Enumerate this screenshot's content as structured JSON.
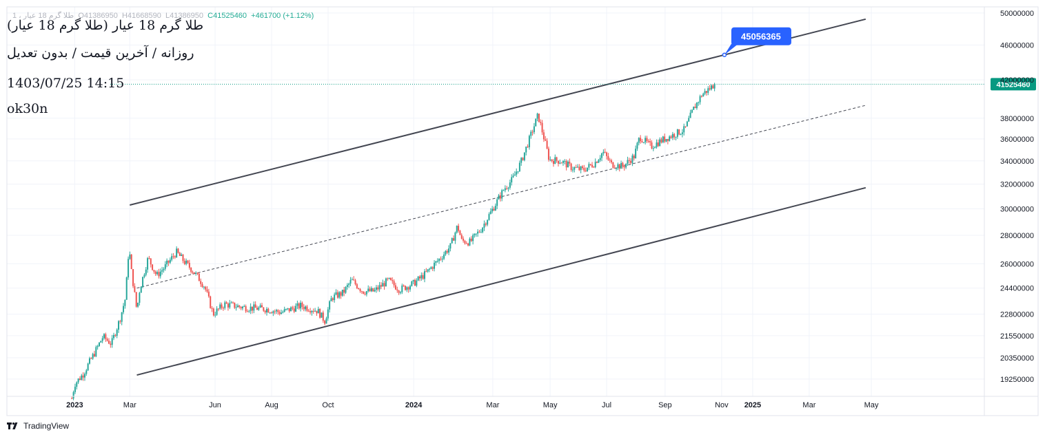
{
  "ohlc": {
    "symbol_faded": "1 ، طلا گرم 18 عیار",
    "open": "O41386950",
    "high": "H41668590",
    "low": "L41386950",
    "close": "C41525460",
    "change": "+461700 (+1.12%)"
  },
  "notes": {
    "title": "طلا گرم 18 عیار (طلا گرم 18 عیار)",
    "subtitle": "روزانه / آخرین قیمت / بدون تعدیل",
    "datetime": "1403/07/25 14:15",
    "author": "ok30n"
  },
  "brand": "TradingView",
  "colors": {
    "up": "#26a69a",
    "down": "#ef5350",
    "line": "#434651",
    "label_blue": "#2962ff",
    "last_price": "#089981",
    "grid": "#f0f3fa"
  },
  "chart_data": {
    "type": "candlestick",
    "title": "طلا گرم 18 عیار",
    "x_axis": {
      "ticks": [
        {
          "label": "2023",
          "t": 0.0,
          "bold": true
        },
        {
          "label": "Mar",
          "t": 1.95,
          "bold": false
        },
        {
          "label": "Jun",
          "t": 4.97,
          "bold": false
        },
        {
          "label": "Aug",
          "t": 6.97,
          "bold": false
        },
        {
          "label": "Oct",
          "t": 8.97,
          "bold": false
        },
        {
          "label": "2024",
          "t": 12.0,
          "bold": true
        },
        {
          "label": "Mar",
          "t": 14.8,
          "bold": false
        },
        {
          "label": "May",
          "t": 16.83,
          "bold": false
        },
        {
          "label": "Jul",
          "t": 18.83,
          "bold": false
        },
        {
          "label": "Sep",
          "t": 20.9,
          "bold": false
        },
        {
          "label": "Nov",
          "t": 22.9,
          "bold": false
        },
        {
          "label": "2025",
          "t": 24.0,
          "bold": true
        },
        {
          "label": "Mar",
          "t": 26.0,
          "bold": false
        },
        {
          "label": "May",
          "t": 28.2,
          "bold": false
        }
      ],
      "range_months": [
        -2.4,
        32.2
      ]
    },
    "y_axis": {
      "scale": "log",
      "range": [
        18400000,
        50800000
      ],
      "ticks": [
        "50000000",
        "46000000",
        "42000000",
        "38000000",
        "36000000",
        "34000000",
        "32000000",
        "30000000",
        "28000000",
        "26000000",
        "24400000",
        "22800000",
        "21550000",
        "20350000",
        "19250000"
      ]
    },
    "price_anchors": [
      {
        "t": -0.1,
        "p": 18300000
      },
      {
        "t": 0.0,
        "p": 19000000
      },
      {
        "t": 0.3,
        "p": 19500000
      },
      {
        "t": 0.7,
        "p": 20600000
      },
      {
        "t": 1.0,
        "p": 21500000
      },
      {
        "t": 1.3,
        "p": 21100000
      },
      {
        "t": 1.6,
        "p": 22500000
      },
      {
        "t": 1.8,
        "p": 23800000
      },
      {
        "t": 1.92,
        "p": 27200000
      },
      {
        "t": 2.0,
        "p": 25600000
      },
      {
        "t": 2.2,
        "p": 23000000
      },
      {
        "t": 2.3,
        "p": 24300000
      },
      {
        "t": 2.6,
        "p": 26400000
      },
      {
        "t": 2.9,
        "p": 25200000
      },
      {
        "t": 3.2,
        "p": 25800000
      },
      {
        "t": 3.6,
        "p": 26800000
      },
      {
        "t": 3.9,
        "p": 26100000
      },
      {
        "t": 4.2,
        "p": 25500000
      },
      {
        "t": 4.6,
        "p": 24500000
      },
      {
        "t": 4.9,
        "p": 22800000
      },
      {
        "t": 5.3,
        "p": 23400000
      },
      {
        "t": 6.0,
        "p": 23200000
      },
      {
        "t": 6.8,
        "p": 23100000
      },
      {
        "t": 7.3,
        "p": 22900000
      },
      {
        "t": 8.0,
        "p": 23300000
      },
      {
        "t": 8.6,
        "p": 23000000
      },
      {
        "t": 8.85,
        "p": 22400000
      },
      {
        "t": 9.1,
        "p": 23800000
      },
      {
        "t": 9.5,
        "p": 24100000
      },
      {
        "t": 9.8,
        "p": 24900000
      },
      {
        "t": 10.2,
        "p": 24200000
      },
      {
        "t": 10.6,
        "p": 24200000
      },
      {
        "t": 11.1,
        "p": 24900000
      },
      {
        "t": 11.5,
        "p": 24300000
      },
      {
        "t": 12.0,
        "p": 24700000
      },
      {
        "t": 12.4,
        "p": 25300000
      },
      {
        "t": 12.9,
        "p": 26300000
      },
      {
        "t": 13.3,
        "p": 27200000
      },
      {
        "t": 13.55,
        "p": 28700000
      },
      {
        "t": 13.7,
        "p": 27600000
      },
      {
        "t": 14.0,
        "p": 27500000
      },
      {
        "t": 14.4,
        "p": 28500000
      },
      {
        "t": 14.8,
        "p": 30000000
      },
      {
        "t": 15.2,
        "p": 31600000
      },
      {
        "t": 15.5,
        "p": 32400000
      },
      {
        "t": 15.8,
        "p": 33900000
      },
      {
        "t": 16.1,
        "p": 36000000
      },
      {
        "t": 16.4,
        "p": 38300000
      },
      {
        "t": 16.6,
        "p": 36200000
      },
      {
        "t": 16.8,
        "p": 34100000
      },
      {
        "t": 17.2,
        "p": 34000000
      },
      {
        "t": 17.6,
        "p": 33400000
      },
      {
        "t": 18.0,
        "p": 33200000
      },
      {
        "t": 18.4,
        "p": 33800000
      },
      {
        "t": 18.7,
        "p": 34800000
      },
      {
        "t": 19.0,
        "p": 33700000
      },
      {
        "t": 19.4,
        "p": 33500000
      },
      {
        "t": 19.8,
        "p": 34400000
      },
      {
        "t": 20.0,
        "p": 36200000
      },
      {
        "t": 20.4,
        "p": 35300000
      },
      {
        "t": 20.8,
        "p": 35900000
      },
      {
        "t": 21.2,
        "p": 36400000
      },
      {
        "t": 21.6,
        "p": 36900000
      },
      {
        "t": 21.9,
        "p": 38900000
      },
      {
        "t": 22.2,
        "p": 40400000
      },
      {
        "t": 22.45,
        "p": 41000000
      },
      {
        "t": 22.65,
        "p": 41525460
      }
    ],
    "last_price": {
      "value": 41525460,
      "label": "41525460"
    },
    "channel": {
      "upper": {
        "t1": 1.95,
        "p1": 30300000,
        "t2": 28.0,
        "p2": 49200000
      },
      "lower": {
        "t1": 2.2,
        "p1": 19450000,
        "t2": 28.0,
        "p2": 31700000
      },
      "mid": {
        "t1": 2.2,
        "p1": 24400000,
        "t2": 28.0,
        "p2": 39300000
      }
    },
    "annotation": {
      "label": "45056365",
      "value": 45056365,
      "t": 23.0
    }
  }
}
